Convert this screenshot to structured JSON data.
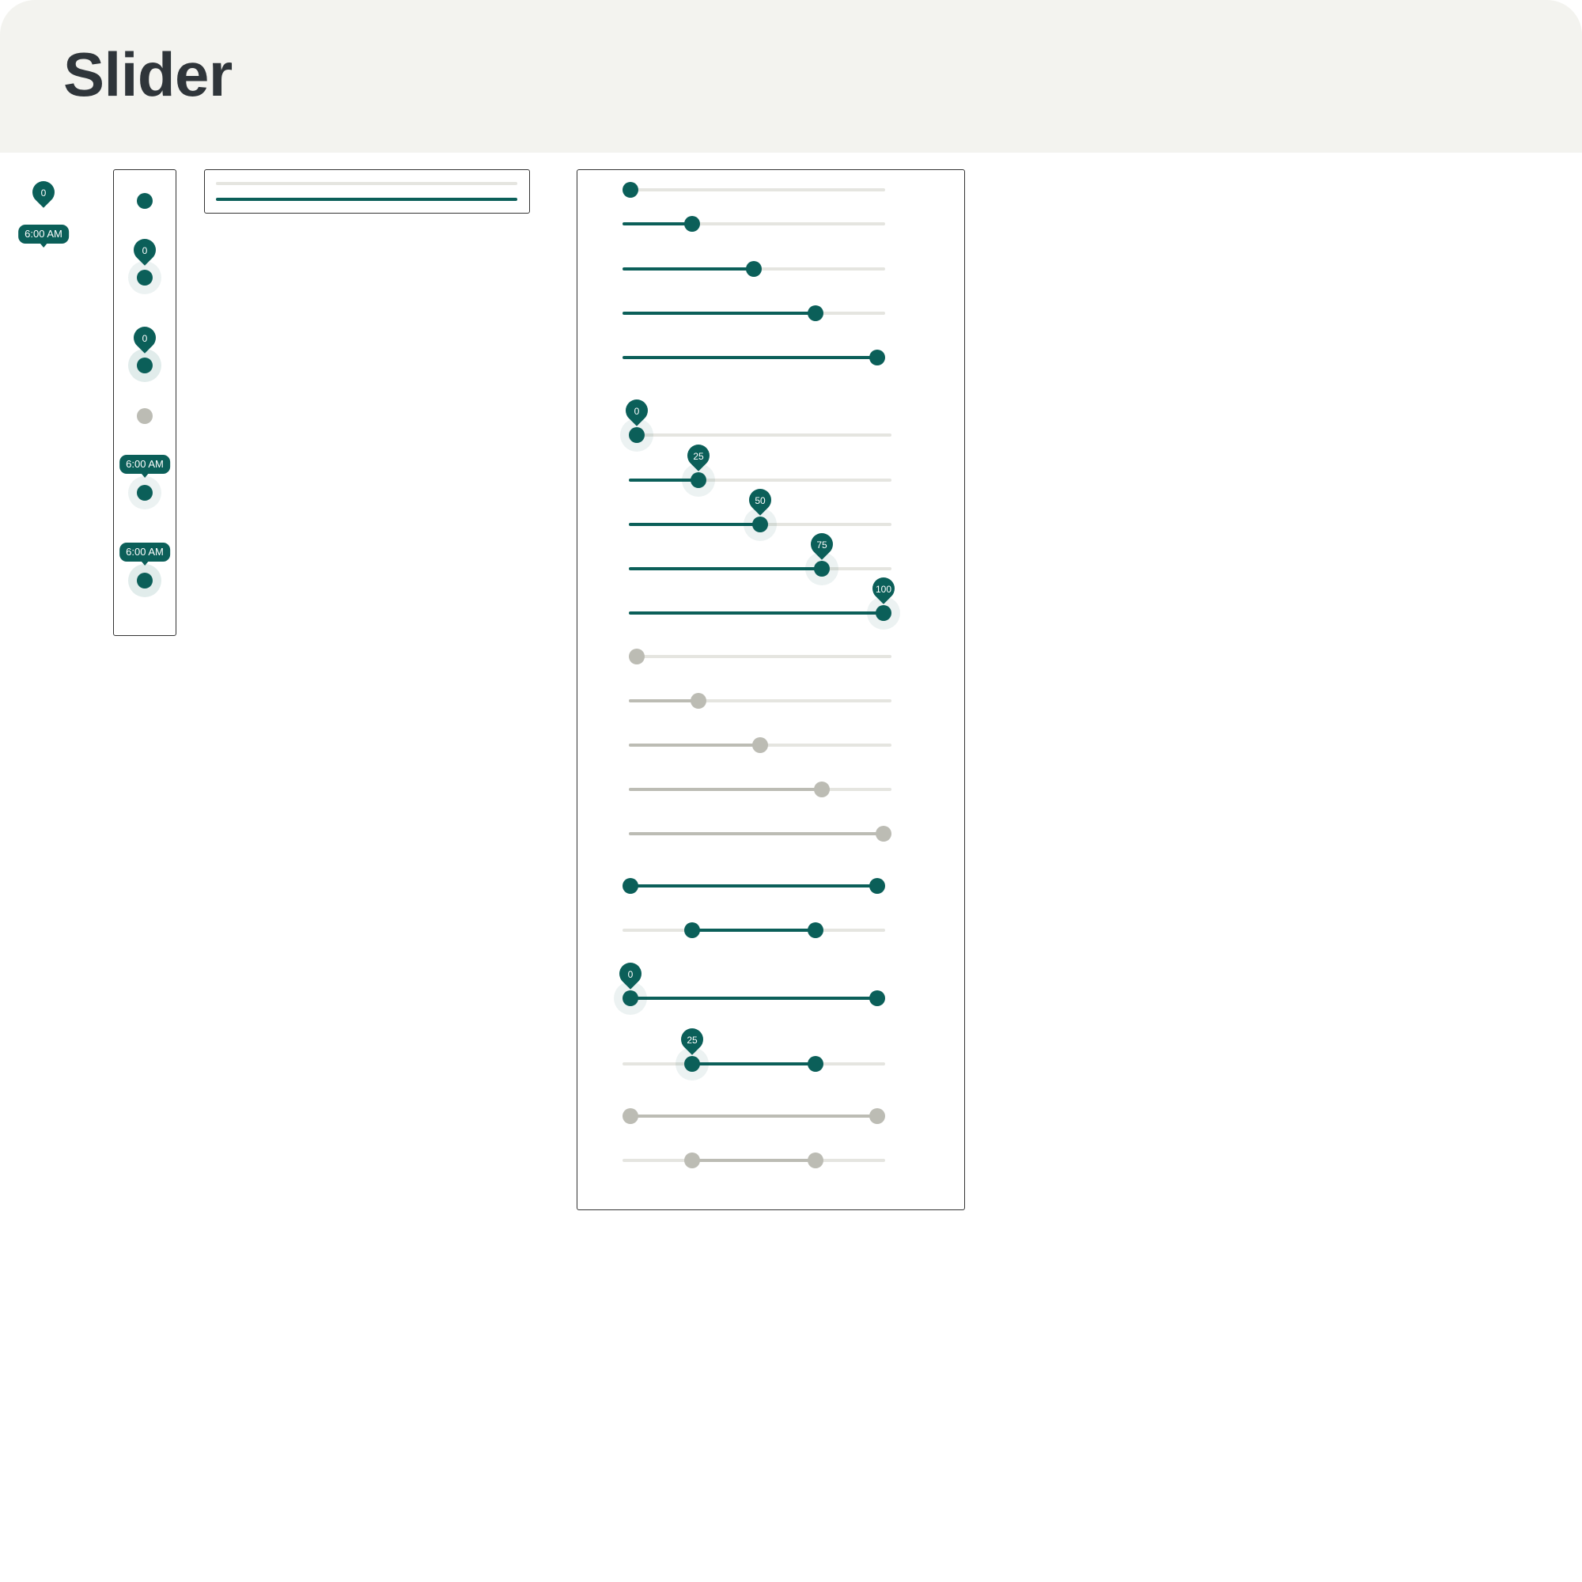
{
  "header": {
    "title": "Slider"
  },
  "colors": {
    "accent": "#0b5f59",
    "inactive_track": "#e5e5e0",
    "disabled": "#bcbcb4",
    "header_bg": "#f3f3ef"
  },
  "tooltips": {
    "value_label": "0",
    "time_label": "6:00 AM"
  },
  "thumb_column": {
    "value_labels": [
      "0",
      "0"
    ],
    "time_labels": [
      "6:00 AM",
      "6:00 AM"
    ]
  },
  "bars_demo": {
    "inactive_track": true,
    "active_track": true
  },
  "single_sliders": [
    {
      "value": 0,
      "state": "enabled",
      "label": ""
    },
    {
      "value": 25,
      "state": "enabled",
      "label": ""
    },
    {
      "value": 50,
      "state": "enabled",
      "label": ""
    },
    {
      "value": 75,
      "state": "enabled",
      "label": ""
    },
    {
      "value": 100,
      "state": "enabled",
      "label": ""
    },
    {
      "value": 0,
      "state": "focused",
      "label": "0"
    },
    {
      "value": 25,
      "state": "focused",
      "label": "25"
    },
    {
      "value": 50,
      "state": "focused",
      "label": "50"
    },
    {
      "value": 75,
      "state": "focused",
      "label": "75"
    },
    {
      "value": 100,
      "state": "focused",
      "label": "100"
    },
    {
      "value": 0,
      "state": "disabled",
      "label": ""
    },
    {
      "value": 25,
      "state": "disabled",
      "label": ""
    },
    {
      "value": 50,
      "state": "disabled",
      "label": ""
    },
    {
      "value": 75,
      "state": "disabled",
      "label": ""
    },
    {
      "value": 100,
      "state": "disabled",
      "label": ""
    }
  ],
  "range_sliders": [
    {
      "low": 0,
      "high": 100,
      "state": "enabled",
      "label": ""
    },
    {
      "low": 25,
      "high": 75,
      "state": "enabled",
      "label": ""
    },
    {
      "low": 0,
      "high": 100,
      "state": "focused",
      "label": "0"
    },
    {
      "low": 25,
      "high": 75,
      "state": "focused",
      "label": "25"
    },
    {
      "low": 0,
      "high": 100,
      "state": "disabled",
      "label": ""
    },
    {
      "low": 25,
      "high": 75,
      "state": "disabled",
      "label": ""
    }
  ]
}
